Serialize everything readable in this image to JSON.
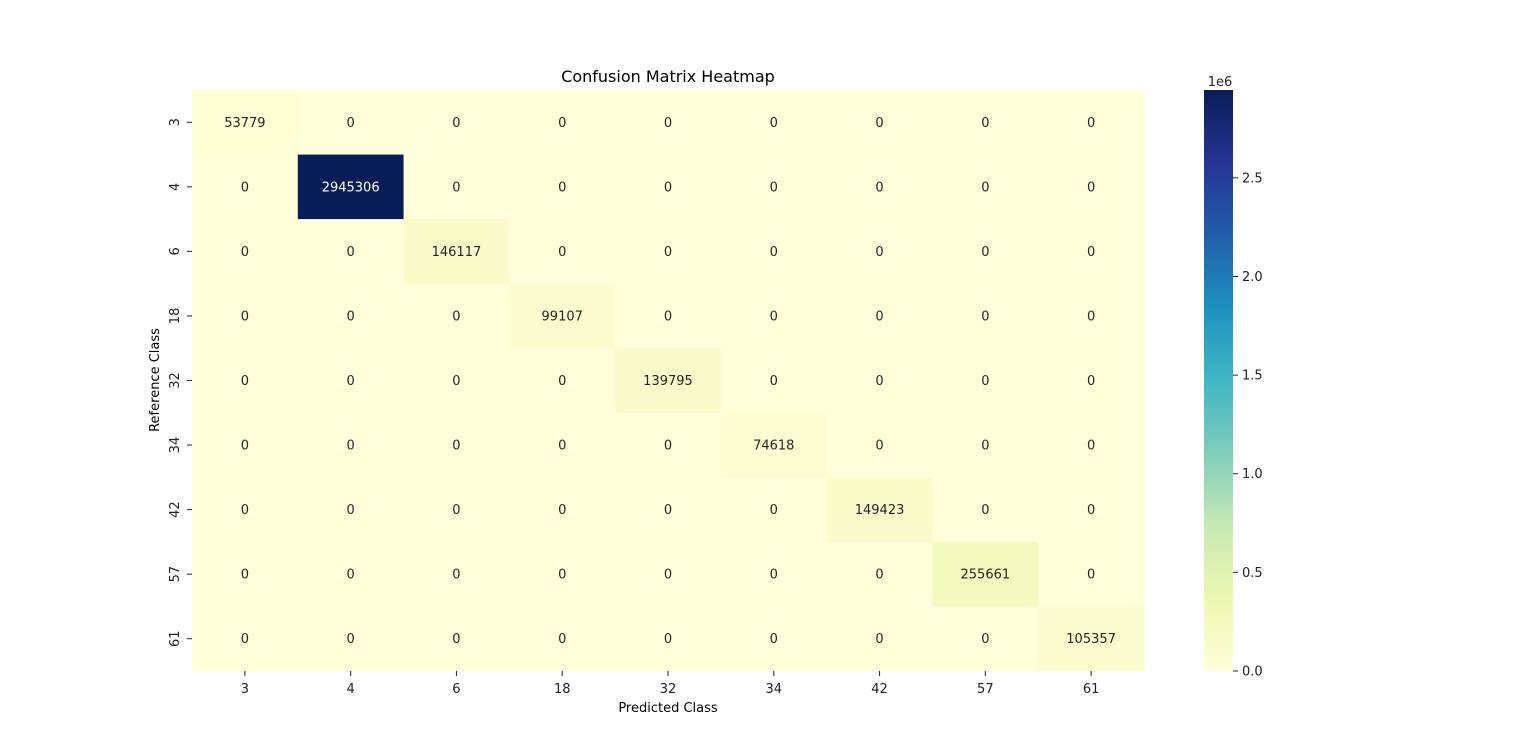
{
  "chart_data": {
    "type": "heatmap",
    "title": "Confusion Matrix Heatmap",
    "xlabel": "Predicted Class",
    "ylabel": "Reference Class",
    "x_categories": [
      "3",
      "4",
      "6",
      "18",
      "32",
      "34",
      "42",
      "57",
      "61"
    ],
    "y_categories": [
      "3",
      "4",
      "6",
      "18",
      "32",
      "34",
      "42",
      "57",
      "61"
    ],
    "values": [
      [
        53779,
        0,
        0,
        0,
        0,
        0,
        0,
        0,
        0
      ],
      [
        0,
        2945306,
        0,
        0,
        0,
        0,
        0,
        0,
        0
      ],
      [
        0,
        0,
        146117,
        0,
        0,
        0,
        0,
        0,
        0
      ],
      [
        0,
        0,
        0,
        99107,
        0,
        0,
        0,
        0,
        0
      ],
      [
        0,
        0,
        0,
        0,
        139795,
        0,
        0,
        0,
        0
      ],
      [
        0,
        0,
        0,
        0,
        0,
        74618,
        0,
        0,
        0
      ],
      [
        0,
        0,
        0,
        0,
        0,
        0,
        149423,
        0,
        0
      ],
      [
        0,
        0,
        0,
        0,
        0,
        0,
        0,
        255661,
        0
      ],
      [
        0,
        0,
        0,
        0,
        0,
        0,
        0,
        0,
        105357
      ]
    ],
    "colormap": "YlGnBu",
    "colorbar": {
      "range": [
        0,
        2945306
      ],
      "ticks": [
        0.0,
        0.5,
        1.0,
        1.5,
        2.0,
        2.5
      ],
      "tick_labels": [
        "0.0",
        "0.5",
        "1.0",
        "1.5",
        "2.0",
        "2.5"
      ],
      "offset_label": "1e6",
      "scale": 1000000
    },
    "grid": false
  }
}
